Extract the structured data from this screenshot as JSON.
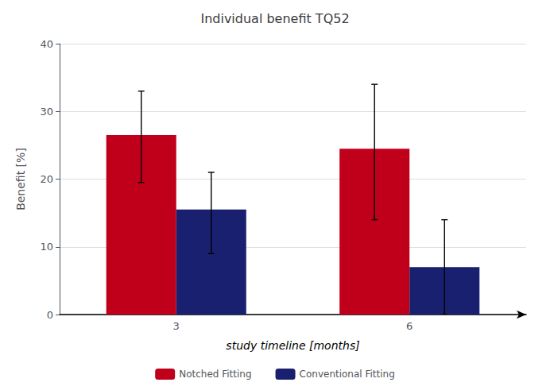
{
  "chart_data": {
    "type": "bar",
    "title": "Individual benefit TQ52",
    "xlabel": "study timeline [months]",
    "ylabel": "Benefit [%]",
    "categories": [
      "3",
      "6"
    ],
    "series": [
      {
        "name": "Notched Fitting",
        "color": "#C0001A",
        "values": [
          26.5,
          24.5
        ],
        "yerr_low": [
          7.0,
          10.5
        ],
        "yerr_high": [
          6.5,
          9.5
        ]
      },
      {
        "name": "Conventional Fitting",
        "color": "#1A2070",
        "values": [
          15.5,
          7.0
        ],
        "yerr_low": [
          6.5,
          7.0
        ],
        "yerr_high": [
          5.5,
          7.0
        ]
      }
    ],
    "ylim": [
      0,
      40
    ],
    "yticks": [
      0,
      10,
      20,
      30,
      40
    ],
    "grid": true,
    "legend": "bottom"
  }
}
